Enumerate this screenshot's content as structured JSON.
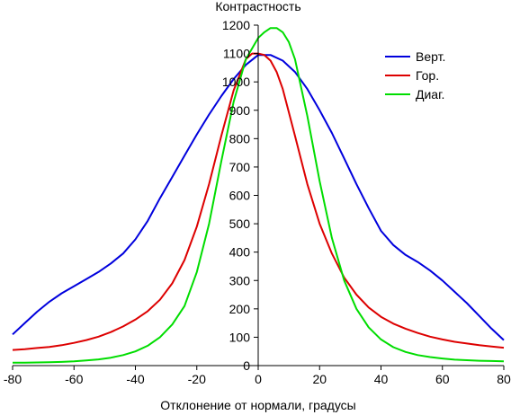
{
  "chart_data": {
    "type": "line",
    "title": "",
    "xlabel": "Отклонение от нормали, градусы",
    "ylabel": "Контрастность",
    "xlim": [
      -80,
      80
    ],
    "ylim": [
      0,
      1200
    ],
    "x_ticks": [
      -80,
      -60,
      -40,
      -20,
      0,
      20,
      40,
      60,
      80
    ],
    "y_ticks": [
      0,
      100,
      200,
      300,
      400,
      500,
      600,
      700,
      800,
      900,
      1000,
      1100,
      1200
    ],
    "grid": false,
    "legend_position": "top-right",
    "series": [
      {
        "name": "Верт.",
        "color": "#0000dd",
        "x": [
          -80,
          -76,
          -72,
          -68,
          -64,
          -60,
          -56,
          -52,
          -48,
          -44,
          -40,
          -36,
          -32,
          -28,
          -24,
          -20,
          -16,
          -12,
          -8,
          -4,
          0,
          4,
          8,
          12,
          16,
          20,
          24,
          28,
          32,
          36,
          40,
          44,
          48,
          52,
          56,
          60,
          64,
          68,
          72,
          76,
          80
        ],
        "y": [
          110,
          150,
          190,
          225,
          255,
          280,
          305,
          330,
          360,
          395,
          445,
          510,
          590,
          665,
          740,
          815,
          885,
          950,
          1010,
          1060,
          1095,
          1095,
          1075,
          1035,
          975,
          900,
          820,
          730,
          640,
          555,
          475,
          425,
          390,
          365,
          335,
          300,
          260,
          220,
          175,
          130,
          90
        ]
      },
      {
        "name": "Гор.",
        "color": "#dd0000",
        "x": [
          -80,
          -76,
          -72,
          -68,
          -64,
          -60,
          -56,
          -52,
          -48,
          -44,
          -40,
          -36,
          -32,
          -28,
          -24,
          -20,
          -16,
          -12,
          -8,
          -4,
          -2,
          0,
          2,
          4,
          6,
          8,
          12,
          16,
          20,
          24,
          28,
          32,
          36,
          40,
          44,
          48,
          52,
          56,
          60,
          64,
          68,
          72,
          76,
          80
        ],
        "y": [
          55,
          58,
          62,
          66,
          72,
          80,
          90,
          102,
          118,
          138,
          162,
          192,
          232,
          290,
          372,
          490,
          640,
          810,
          970,
          1080,
          1100,
          1100,
          1095,
          1075,
          1035,
          975,
          810,
          640,
          500,
          395,
          310,
          250,
          205,
          172,
          148,
          130,
          115,
          102,
          92,
          84,
          78,
          72,
          67,
          63
        ]
      },
      {
        "name": "Диаг.",
        "color": "#00dd00",
        "x": [
          -80,
          -76,
          -72,
          -68,
          -64,
          -60,
          -56,
          -52,
          -48,
          -44,
          -40,
          -36,
          -32,
          -28,
          -24,
          -20,
          -16,
          -12,
          -8,
          -4,
          0,
          2,
          4,
          6,
          8,
          10,
          12,
          16,
          20,
          24,
          28,
          32,
          36,
          40,
          44,
          48,
          52,
          56,
          60,
          64,
          68,
          72,
          76,
          80
        ],
        "y": [
          10,
          10,
          11,
          12,
          13,
          15,
          18,
          22,
          28,
          37,
          50,
          70,
          100,
          145,
          210,
          330,
          500,
          720,
          930,
          1080,
          1155,
          1175,
          1190,
          1190,
          1175,
          1140,
          1080,
          880,
          650,
          450,
          300,
          200,
          135,
          92,
          65,
          48,
          37,
          30,
          25,
          21,
          19,
          17,
          16,
          15
        ]
      }
    ]
  }
}
